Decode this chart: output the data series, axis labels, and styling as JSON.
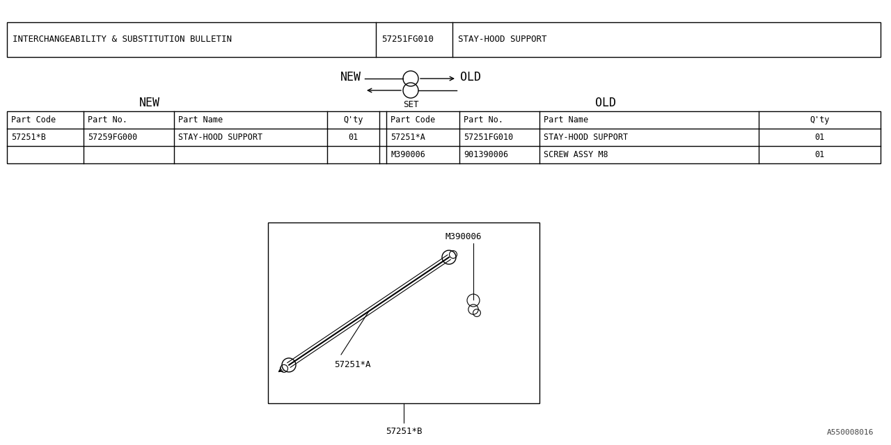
{
  "bg_color": "#ffffff",
  "text_color": "#000000",
  "font_family": "monospace",
  "header_row": {
    "col1_text": "INTERCHANGEABILITY & SUBSTITUTION BULLETIN",
    "col2_text": "57251FG010",
    "col3_text": "STAY-HOOD SUPPORT"
  },
  "legend_new": "NEW",
  "legend_old": "OLD",
  "legend_set": "SET",
  "table_headers": [
    "Part Code",
    "Part No.",
    "Part Name",
    "Q'ty",
    "Part Code",
    "Part No.",
    "Part Name",
    "Q'ty"
  ],
  "new_rows": [
    [
      "57251*B",
      "57259FG000",
      "STAY-HOOD SUPPORT",
      "01"
    ]
  ],
  "old_rows": [
    [
      "57251*A",
      "57251FG010",
      "STAY-HOOD SUPPORT",
      "01"
    ],
    [
      "M390006",
      "901390006",
      "SCREW ASSY M8",
      "01"
    ]
  ],
  "watermark": "A550008016"
}
